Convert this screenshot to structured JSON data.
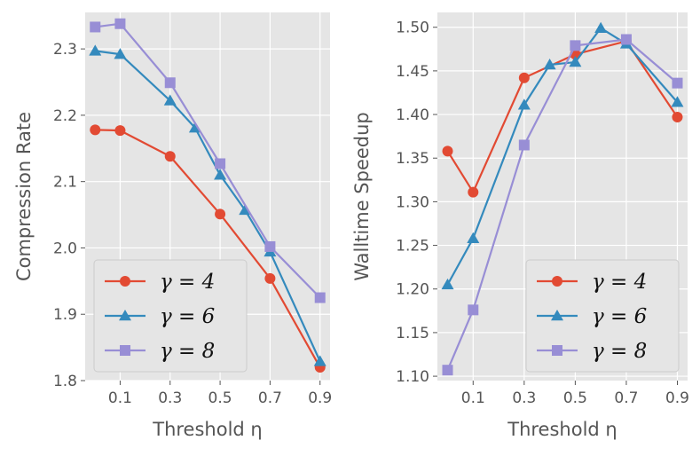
{
  "chart_data": [
    {
      "type": "line",
      "xlabel": "Threshold η",
      "ylabel": "Compression Rate",
      "xlim": [
        -0.04,
        0.94
      ],
      "ylim": [
        1.8,
        2.355
      ],
      "xticks": [
        0.1,
        0.3,
        0.5,
        0.7,
        0.9
      ],
      "xtick_labels": [
        "0.1",
        "0.3",
        "0.5",
        "0.7",
        "0.9"
      ],
      "yticks": [
        1.8,
        1.9,
        2.0,
        2.1,
        2.2,
        2.3
      ],
      "ytick_labels": [
        "1.8",
        "1.9",
        "2.0",
        "2.1",
        "2.2",
        "2.3"
      ],
      "grid": true,
      "legend_position": "lower-left",
      "series": [
        {
          "name": "γ = 4",
          "color": "#E24A33",
          "marker": "circle",
          "x": [
            0.0,
            0.1,
            0.3,
            0.5,
            0.7,
            0.9
          ],
          "y": [
            2.178,
            2.177,
            2.138,
            2.051,
            1.954,
            1.82
          ]
        },
        {
          "name": "γ = 6",
          "color": "#348ABD",
          "marker": "triangle",
          "x": [
            0.0,
            0.1,
            0.3,
            0.4,
            0.5,
            0.6,
            0.7,
            0.9
          ],
          "y": [
            2.297,
            2.292,
            2.222,
            2.181,
            2.11,
            2.057,
            1.994,
            1.829
          ]
        },
        {
          "name": "γ = 8",
          "color": "#988ED5",
          "marker": "square",
          "x": [
            0.0,
            0.1,
            0.3,
            0.5,
            0.7,
            0.9
          ],
          "y": [
            2.333,
            2.338,
            2.249,
            2.127,
            2.002,
            1.925
          ]
        }
      ]
    },
    {
      "type": "line",
      "xlabel": "Threshold η",
      "ylabel": "Walltime Speedup",
      "xlim": [
        -0.04,
        0.94
      ],
      "ylim": [
        1.095,
        1.517
      ],
      "xticks": [
        0.1,
        0.3,
        0.5,
        0.7,
        0.9
      ],
      "xtick_labels": [
        "0.1",
        "0.3",
        "0.5",
        "0.7",
        "0.9"
      ],
      "yticks": [
        1.1,
        1.15,
        1.2,
        1.25,
        1.3,
        1.35,
        1.4,
        1.45,
        1.5
      ],
      "ytick_labels": [
        "1.10",
        "1.15",
        "1.20",
        "1.25",
        "1.30",
        "1.35",
        "1.40",
        "1.45",
        "1.50"
      ],
      "grid": true,
      "legend_position": "lower-right",
      "series": [
        {
          "name": "γ = 4",
          "color": "#E24A33",
          "marker": "circle",
          "x": [
            0.0,
            0.1,
            0.3,
            0.5,
            0.7,
            0.9
          ],
          "y": [
            1.358,
            1.311,
            1.442,
            1.469,
            1.484,
            1.397
          ]
        },
        {
          "name": "γ = 6",
          "color": "#348ABD",
          "marker": "triangle",
          "x": [
            0.0,
            0.1,
            0.3,
            0.4,
            0.5,
            0.6,
            0.7,
            0.9
          ],
          "y": [
            1.205,
            1.258,
            1.411,
            1.457,
            1.46,
            1.499,
            1.481,
            1.414
          ]
        },
        {
          "name": "γ = 8",
          "color": "#988ED5",
          "marker": "square",
          "x": [
            0.0,
            0.1,
            0.3,
            0.5,
            0.7,
            0.9
          ],
          "y": [
            1.107,
            1.176,
            1.365,
            1.479,
            1.486,
            1.436
          ]
        }
      ]
    }
  ]
}
